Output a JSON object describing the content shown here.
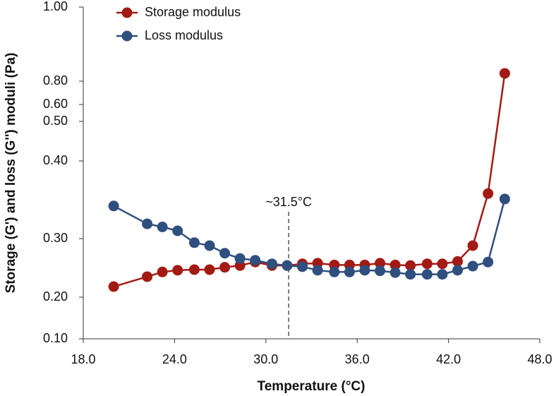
{
  "chart_data": {
    "type": "line",
    "xlabel": "Temperature (°C)",
    "ylabel": "Storage (G') and loss (G'') moduli (Pa)",
    "x": [
      20,
      22.2,
      23.2,
      24.2,
      25.3,
      26.3,
      27.3,
      28.3,
      29.3,
      30.4,
      31.4,
      32.4,
      33.4,
      34.5,
      35.5,
      36.5,
      37.5,
      38.5,
      39.5,
      40.6,
      41.6,
      42.6,
      43.6,
      44.6,
      45.7
    ],
    "series": [
      {
        "name": "Storage modulus",
        "color": "#a31a14",
        "values": [
          0.218,
          0.235,
          0.243,
          0.246,
          0.247,
          0.247,
          0.251,
          0.254,
          0.26,
          0.254,
          0.254,
          0.257,
          0.258,
          0.255,
          0.255,
          0.255,
          0.258,
          0.255,
          0.254,
          0.257,
          0.257,
          0.261,
          0.288,
          0.358,
          0.821
        ]
      },
      {
        "name": "Loss modulus",
        "color": "#2f4f7f",
        "values": [
          0.342,
          0.319,
          0.315,
          0.31,
          0.293,
          0.288,
          0.275,
          0.266,
          0.263,
          0.257,
          0.254,
          0.252,
          0.246,
          0.243,
          0.243,
          0.246,
          0.245,
          0.242,
          0.239,
          0.239,
          0.239,
          0.246,
          0.253,
          0.26,
          0.351
        ]
      }
    ],
    "xlim": [
      18,
      48
    ],
    "xticks": [
      {
        "value": 18,
        "label": "18.0"
      },
      {
        "value": 24,
        "label": "24.0"
      },
      {
        "value": 30,
        "label": "30.0"
      },
      {
        "value": 36,
        "label": "36.0"
      },
      {
        "value": 42,
        "label": "42.0"
      },
      {
        "value": 48,
        "label": "48.0"
      }
    ],
    "ylim": [
      0.1,
      1
    ],
    "yticks": [
      {
        "value": 0.1,
        "label": "0.10"
      },
      {
        "value": 0.2,
        "label": "0.20"
      },
      {
        "value": 0.3,
        "label": "0.30"
      },
      {
        "value": 0.4,
        "label": "0.40"
      },
      {
        "value": 0.5,
        "label": "0.50"
      },
      {
        "value": 0.6,
        "label": "0.60"
      },
      {
        "value": 0.8,
        "label": "0.80"
      },
      {
        "value": 1,
        "label": "1.00"
      }
    ],
    "annotation": {
      "text": "~31.5°C",
      "x": 31.5
    },
    "legend": "upper left"
  }
}
